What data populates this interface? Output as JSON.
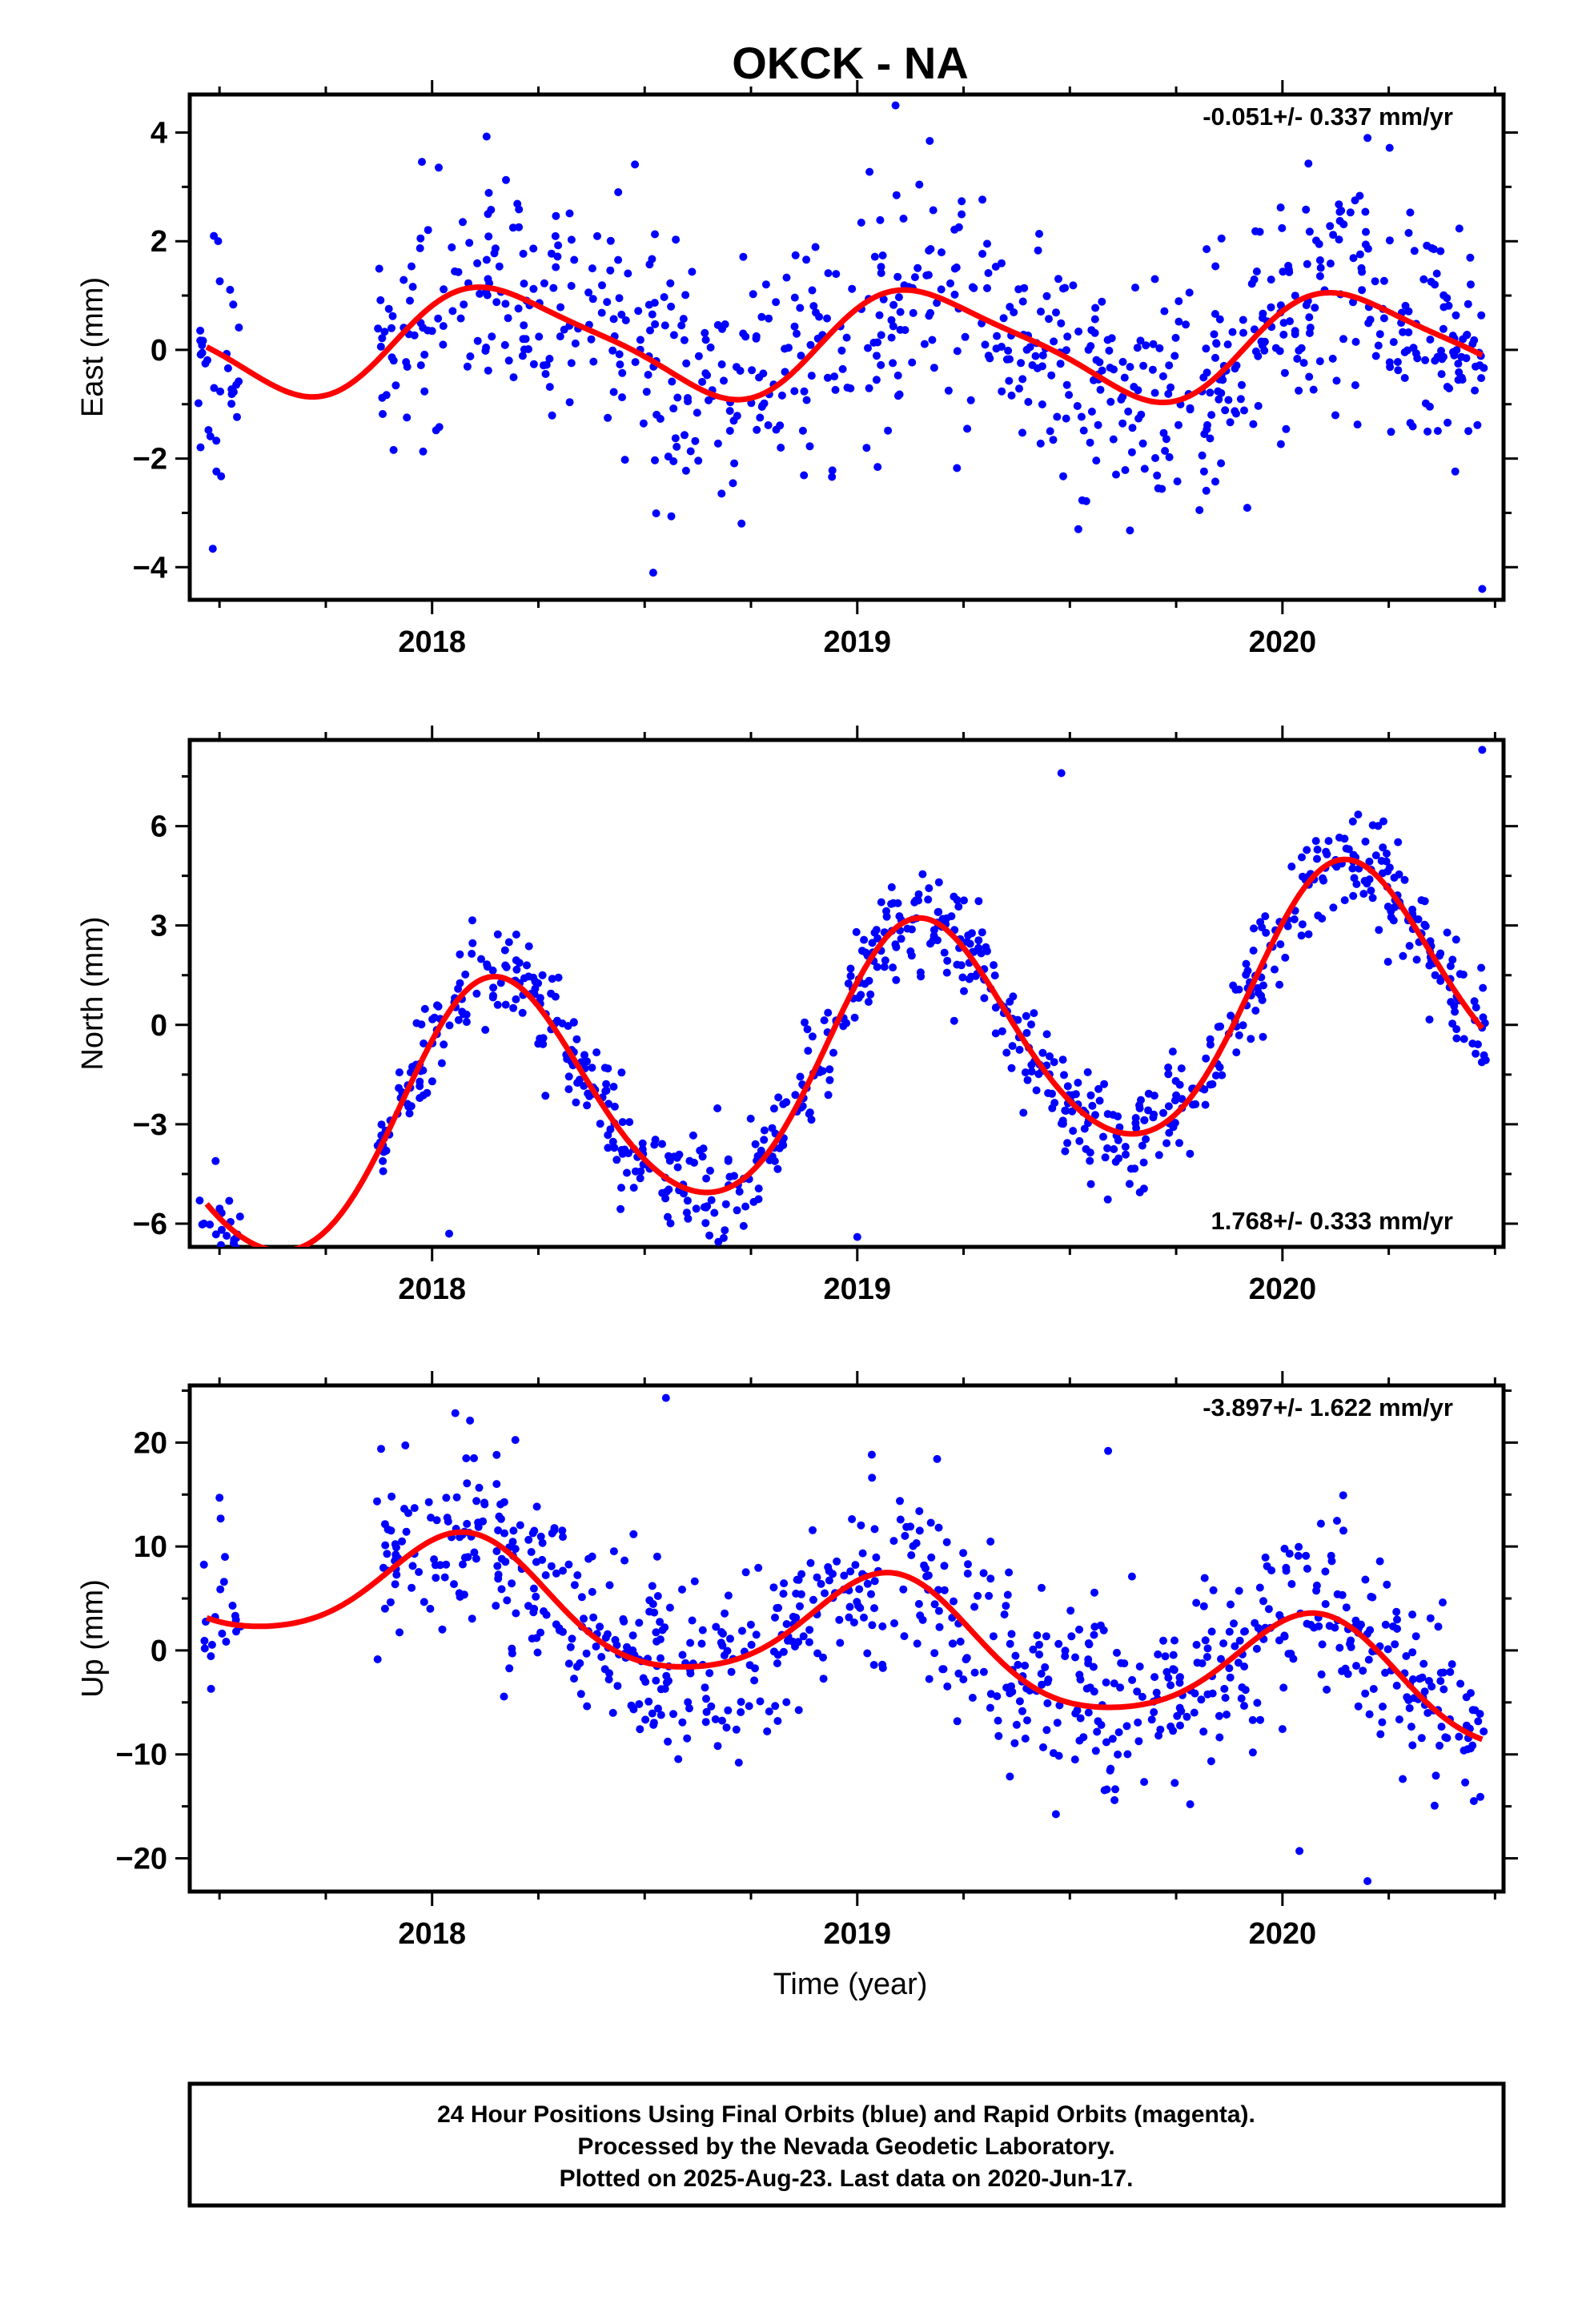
{
  "title": "OKCK - NA",
  "xlabel": "Time (year)",
  "footer": {
    "line1": "24 Hour Positions Using Final Orbits (blue) and Rapid Orbits (magenta).",
    "line2": "Processed by the Nevada Geodetic Laboratory.",
    "line3": "Plotted on 2025-Aug-23. Last data on 2020-Jun-17."
  },
  "colors": {
    "points": "#0000ff",
    "fit": "#ff0000",
    "axes": "#000000"
  },
  "chart_data": [
    {
      "type": "scatter",
      "name": "east",
      "ylabel": "East (mm)",
      "rate_label": "-0.051+/- 0.337 mm/yr",
      "xlim": [
        2017.43,
        2020.52
      ],
      "ylim": [
        -4.6,
        4.7
      ],
      "xticks": [
        2018,
        2019,
        2020
      ],
      "yticks": [
        -4,
        -2,
        0,
        2,
        4
      ],
      "ytick_labels": [
        "−4",
        "−2",
        "0",
        "2",
        "4"
      ],
      "rate": -0.051,
      "seasonal_fit": {
        "offset": 0.12,
        "annual_amp": 0.95,
        "annual_phase": 0.5,
        "semi_amp": 0.2,
        "semi_phase": 1.2,
        "rate": -0.051
      },
      "gap": [
        2017.55,
        2017.87
      ],
      "scatter_sd": 1.05,
      "n_points": 900,
      "outliers": [
        [
          2019.09,
          4.5
        ],
        [
          2020.2,
          3.9
        ],
        [
          2018.52,
          -4.1
        ],
        [
          2020.47,
          -4.4
        ],
        [
          2019.52,
          -3.3
        ]
      ]
    },
    {
      "type": "scatter",
      "name": "north",
      "ylabel": "North (mm)",
      "rate_label": "1.768+/- 0.333 mm/yr",
      "xlim": [
        2017.43,
        2020.52
      ],
      "ylim": [
        -6.7,
        8.6
      ],
      "xticks": [
        2018,
        2019,
        2020
      ],
      "yticks": [
        -6,
        -3,
        0,
        3,
        6
      ],
      "ytick_labels": [
        "−6",
        "−3",
        "0",
        "3",
        "6"
      ],
      "rate": 1.768,
      "seasonal_fit": {
        "offset": -1.0,
        "annual_amp": 3.7,
        "annual_phase": 0.65,
        "semi_amp": 0.3,
        "semi_phase": 0.2,
        "rate": 1.768
      },
      "gap": [
        2017.55,
        2017.87
      ],
      "scatter_sd": 0.75,
      "n_points": 900,
      "outliers": [
        [
          2018.04,
          -6.3
        ],
        [
          2019.0,
          -6.4
        ],
        [
          2020.47,
          8.3
        ],
        [
          2019.48,
          7.6
        ]
      ]
    },
    {
      "type": "scatter",
      "name": "up",
      "ylabel": "Up (mm)",
      "rate_label": "-3.897+/- 1.622 mm/yr",
      "xlim": [
        2017.43,
        2020.52
      ],
      "ylim": [
        -23.2,
        25.5
      ],
      "xticks": [
        2018,
        2019,
        2020
      ],
      "yticks": [
        -20,
        -10,
        0,
        10,
        20
      ],
      "ytick_labels": [
        "−20",
        "−10",
        "0",
        "10",
        "20"
      ],
      "rate": -3.897,
      "seasonal_fit": {
        "offset": 1.5,
        "annual_amp": 5.5,
        "annual_phase": 1.1,
        "semi_amp": 0.8,
        "semi_phase": 0.4,
        "rate": -3.897
      },
      "gap": [
        2017.55,
        2017.87
      ],
      "scatter_sd": 4.2,
      "n_points": 900,
      "outliers": [
        [
          2018.55,
          24.3
        ],
        [
          2019.59,
          19.2
        ],
        [
          2017.88,
          19.4
        ],
        [
          2020.2,
          -22.2
        ],
        [
          2020.04,
          -19.3
        ],
        [
          2017.5,
          14.7
        ]
      ]
    }
  ]
}
